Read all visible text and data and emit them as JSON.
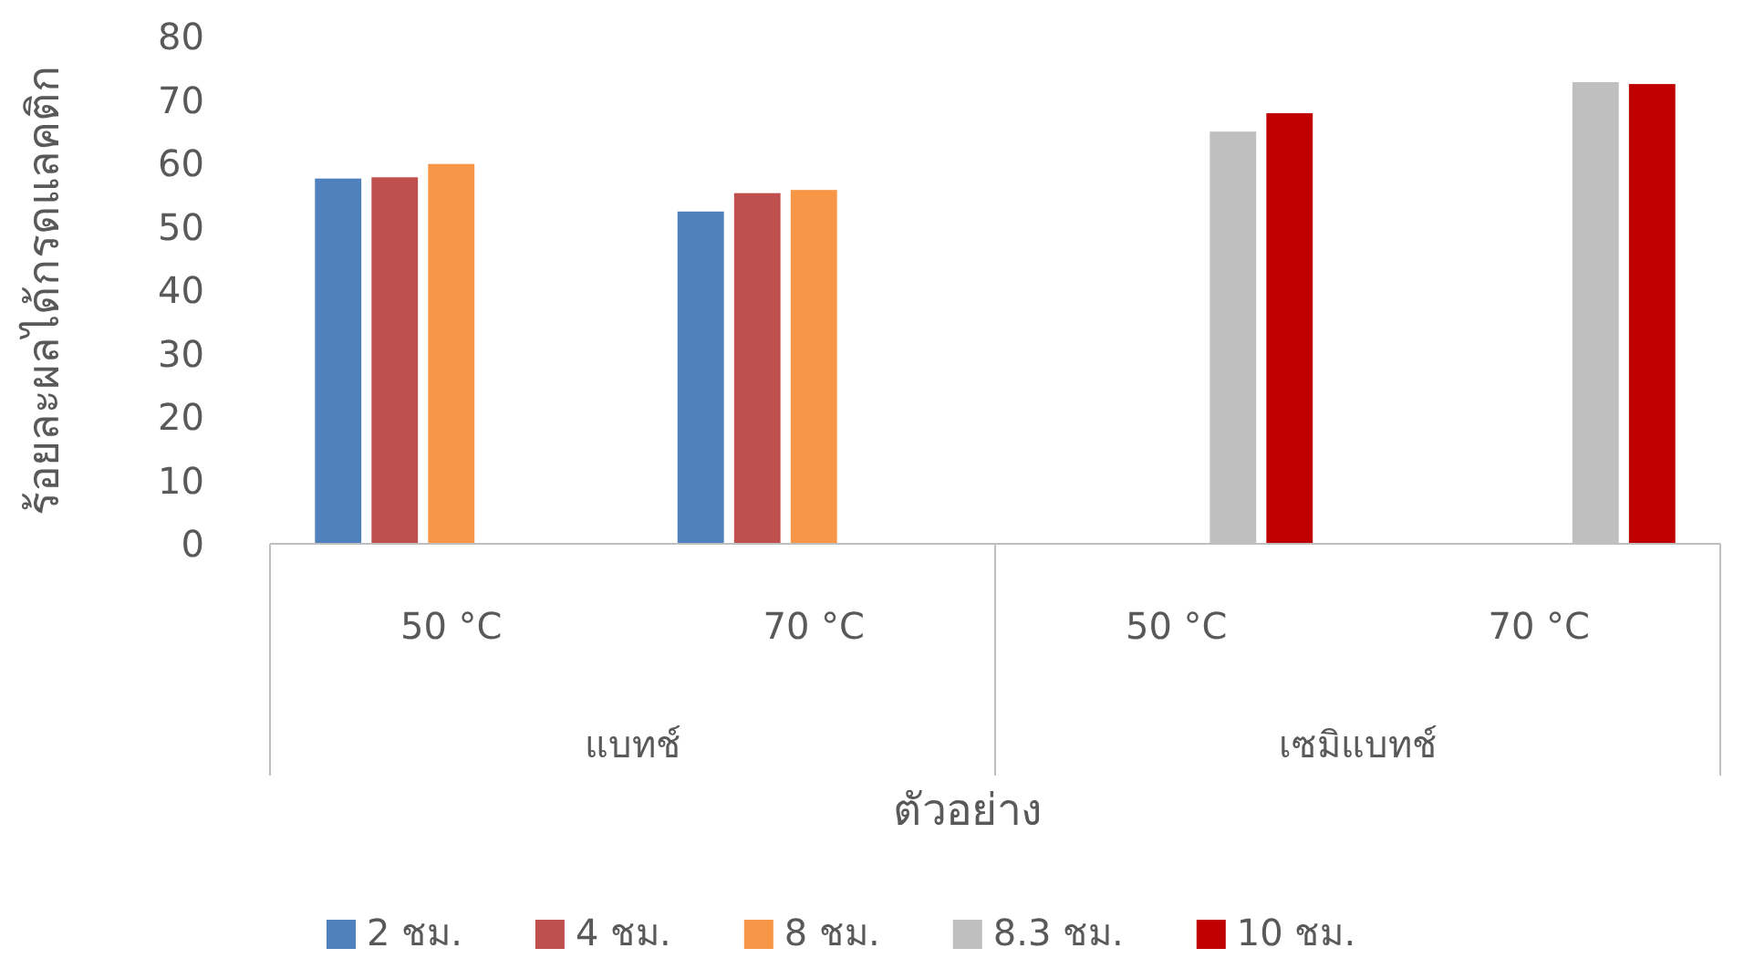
{
  "chart_data": {
    "type": "bar",
    "xlabel": "ตัวอย่าง",
    "ylabel": "ร้อยละผลได้กรดแลคติก",
    "categories": [
      "50 °C",
      "70 °C",
      "50 °C",
      "70 °C"
    ],
    "series": [
      {
        "name": "2 ชม.",
        "color": "#4f81bd",
        "values": [
          57.6,
          52.4,
          null,
          null
        ]
      },
      {
        "name": "4 ชม.",
        "color": "#c0504d",
        "values": [
          57.8,
          55.3,
          null,
          null
        ]
      },
      {
        "name": "8 ชม.",
        "color": "#f79646",
        "values": [
          59.9,
          55.8,
          null,
          null
        ]
      },
      {
        "name": "8.3 ชม.",
        "color": "#bfbfbf",
        "values": [
          null,
          null,
          65.0,
          72.8
        ]
      },
      {
        "name": "10 ชม.",
        "color": "#c00000",
        "values": [
          null,
          null,
          67.9,
          72.5
        ]
      }
    ],
    "annotations": [
      "แบทช์",
      "เซมิแบทช์"
    ],
    "ylim": [
      0,
      80
    ],
    "yticks": [
      0,
      10,
      20,
      30,
      40,
      50,
      60,
      70,
      80
    ],
    "grid": false,
    "legend": "bottom"
  }
}
